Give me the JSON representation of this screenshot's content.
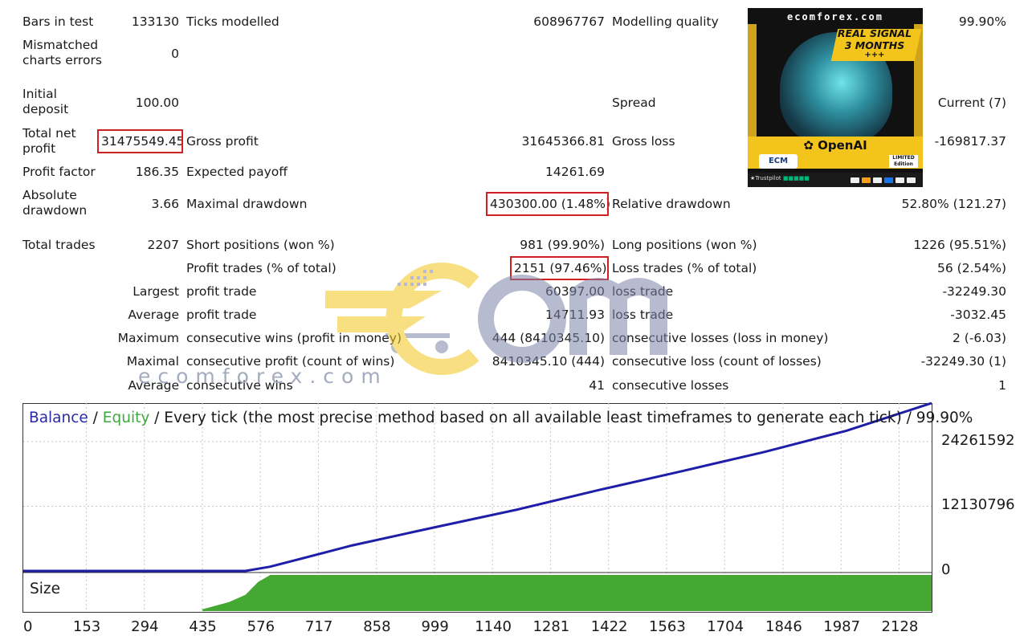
{
  "stats": {
    "bars_in_test": {
      "label": "Bars in test",
      "value": "133130"
    },
    "ticks_modelled": {
      "label": "Ticks modelled",
      "value": "608967767"
    },
    "modelling_quality": {
      "label": "Modelling quality",
      "value": "99.90%"
    },
    "mismatched": {
      "label": "Mismatched charts errors",
      "value": "0"
    },
    "initial_deposit": {
      "label": "Initial deposit",
      "value": "100.00"
    },
    "spread": {
      "label": "Spread",
      "value": "Current (7)"
    },
    "total_net_profit": {
      "label": "Total net profit",
      "value": "31475549.45"
    },
    "gross_profit": {
      "label": "Gross profit",
      "value": "31645366.81"
    },
    "gross_loss": {
      "label": "Gross loss",
      "value": "-169817.37"
    },
    "profit_factor": {
      "label": "Profit factor",
      "value": "186.35"
    },
    "expected_payoff": {
      "label": "Expected payoff",
      "value": "14261.69"
    },
    "absolute_drawdown": {
      "label": "Absolute drawdown",
      "value": "3.66"
    },
    "maximal_drawdown": {
      "label": "Maximal drawdown",
      "value": "430300.00 (1.48%)"
    },
    "relative_drawdown": {
      "label": "Relative drawdown",
      "value": "52.80% (121.27)"
    },
    "total_trades": {
      "label": "Total trades",
      "value": "2207"
    },
    "short_positions": {
      "label": "Short positions (won %)",
      "value": "981 (99.90%)"
    },
    "long_positions": {
      "label": "Long positions (won %)",
      "value": "1226 (95.51%)"
    },
    "profit_trades": {
      "label": "Profit trades (% of total)",
      "value": "2151 (97.46%)"
    },
    "loss_trades": {
      "label": "Loss trades (% of total)",
      "value": "56 (2.54%)"
    },
    "largest": {
      "prefix": "Largest",
      "profit_label": "profit trade",
      "profit_value": "60397.00",
      "loss_label": "loss trade",
      "loss_value": "-32249.30"
    },
    "average": {
      "prefix": "Average",
      "profit_label": "profit trade",
      "profit_value": "14711.93",
      "loss_label": "loss trade",
      "loss_value": "-3032.45"
    },
    "maximum": {
      "prefix": "Maximum",
      "wins_label": "consecutive wins (profit in money)",
      "wins_value": "444 (8410345.10)",
      "losses_label": "consecutive losses (loss in money)",
      "losses_value": "2 (-6.03)"
    },
    "maximal": {
      "prefix": "Maximal",
      "profit_label": "consecutive profit (count of wins)",
      "profit_value": "8410345.10 (444)",
      "loss_label": "consecutive loss (count of losses)",
      "loss_value": "-32249.30 (1)"
    },
    "average_consec": {
      "prefix": "Average",
      "wins_label": "consecutive wins",
      "wins_value": "41",
      "losses_label": "consecutive losses",
      "losses_value": "1"
    }
  },
  "promo": {
    "site": "ecomforex.com",
    "tag_line1": "REAL SIGNAL",
    "tag_line2": "3 MONTHS",
    "tag_line3": "+++",
    "openai": "OpenAI",
    "brand": "ECM",
    "limited": "LIMITED Edition",
    "trustpilot": "Trustpilot"
  },
  "watermark": {
    "text": "ecomforex.com"
  },
  "chart_data": {
    "type": "line",
    "title_parts": {
      "balance": "Balance",
      "sep1": " / ",
      "equity": "Equity",
      "rest": " / Every tick (the most precise method based on all available least timeframes to generate each tick) / 99.90%"
    },
    "x_ticks": [
      "0",
      "153",
      "294",
      "435",
      "576",
      "717",
      "858",
      "999",
      "1140",
      "1281",
      "1422",
      "1563",
      "1704",
      "1846",
      "1987",
      "2128"
    ],
    "y_ticks": [
      "24261592",
      "12130796",
      "0"
    ],
    "ylim": [
      0,
      31475649
    ],
    "xlim": [
      0,
      2207
    ],
    "series": [
      {
        "name": "Balance",
        "color": "#1e1ea8",
        "x": [
          0,
          540,
          600,
          800,
          1000,
          1200,
          1400,
          1600,
          1800,
          2000,
          2207
        ],
        "y": [
          100,
          100,
          800000,
          4800000,
          8200000,
          11500000,
          15200000,
          18700000,
          22300000,
          26300000,
          31475649
        ]
      }
    ],
    "size_panel": {
      "label": "Size",
      "color": "#44a832",
      "x": [
        435,
        500,
        540,
        570,
        600,
        2207
      ],
      "y": [
        0.05,
        0.25,
        0.45,
        0.8,
        1.0,
        1.0
      ]
    },
    "balance_color": "#2a2aa8",
    "equity_color": "#3fa83f"
  }
}
